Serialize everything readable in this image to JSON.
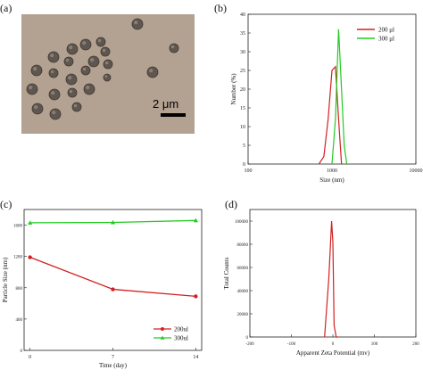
{
  "panels": {
    "a": "(a)",
    "b": "(b)",
    "c": "(c)",
    "d": "(d)"
  },
  "micrograph": {
    "scale_label": "2 μm",
    "background": "#b3a291",
    "particle_color": "#5f5650"
  },
  "chart_data": [
    {
      "panel": "b",
      "type": "line",
      "xlabel": "Size (nm)",
      "ylabel": "Number (%)",
      "xscale": "log",
      "xlim": [
        100,
        10000
      ],
      "ylim": [
        0,
        40
      ],
      "xticks": [
        "100",
        "1000",
        "10000"
      ],
      "yticks": [
        "0",
        "5",
        "10",
        "15",
        "20",
        "25",
        "30",
        "35",
        "40"
      ],
      "grid": false,
      "legend_position": "top-right",
      "series": [
        {
          "name": "200 μl",
          "color": "#d42020",
          "x": [
            700,
            800,
            900,
            1000,
            1100,
            1200,
            1300
          ],
          "y": [
            0,
            2,
            12,
            25,
            26,
            12,
            0
          ]
        },
        {
          "name": "300 μl",
          "color": "#22cc22",
          "x": [
            1000,
            1100,
            1200,
            1300,
            1400,
            1500
          ],
          "y": [
            0,
            12,
            36,
            20,
            5,
            0
          ]
        }
      ]
    },
    {
      "panel": "c",
      "type": "line",
      "xlabel": "Time (day)",
      "ylabel": "Particle Size (nm)",
      "xlim": [
        -0.5,
        14.5
      ],
      "ylim": [
        0,
        1800
      ],
      "xticks": [
        "0",
        "7",
        "14"
      ],
      "yticks": [
        "0",
        "400",
        "800",
        "1200",
        "1600"
      ],
      "grid": false,
      "legend_position": "bottom-right",
      "series": [
        {
          "name": "200ul",
          "color": "#d42020",
          "marker": "circle",
          "x": [
            0,
            7,
            14
          ],
          "y": [
            1190,
            780,
            690
          ]
        },
        {
          "name": "300ul",
          "color": "#22cc22",
          "marker": "triangle",
          "x": [
            0,
            7,
            14
          ],
          "y": [
            1630,
            1635,
            1660
          ],
          "error": [
            15,
            20,
            25
          ]
        }
      ]
    },
    {
      "panel": "d",
      "type": "line",
      "xlabel": "Apparent Zeta Potential (mv)",
      "ylabel": "Total Counts",
      "xlim": [
        -200,
        200
      ],
      "ylim": [
        0,
        110000
      ],
      "xticks": [
        "-200",
        "-100",
        "0",
        "100",
        "200"
      ],
      "yticks": [
        "0",
        "20000",
        "40000",
        "60000",
        "80000",
        "100000"
      ],
      "grid": false,
      "series": [
        {
          "name": "",
          "color": "#d42020",
          "x": [
            -20,
            -10,
            -3,
            0,
            3,
            8,
            12
          ],
          "y": [
            0,
            50000,
            100000,
            82000,
            10000,
            0,
            0
          ]
        }
      ]
    }
  ]
}
